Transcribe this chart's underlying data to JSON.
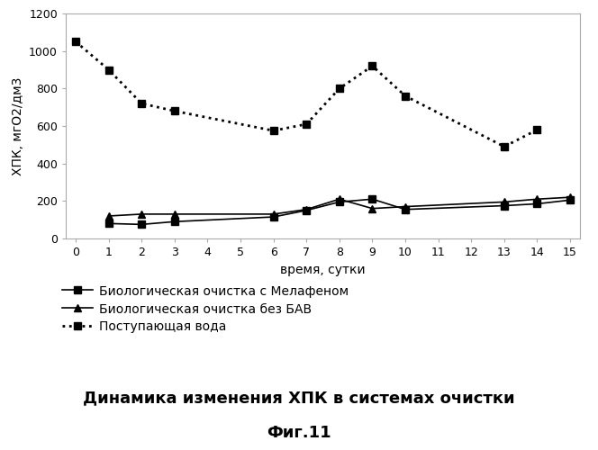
{
  "bio_melafon_x": [
    1,
    2,
    3,
    6,
    7,
    8,
    9,
    10,
    13,
    14,
    15
  ],
  "bio_melafon_y": [
    80,
    75,
    90,
    115,
    150,
    195,
    210,
    155,
    175,
    185,
    205
  ],
  "bio_no_bav_x": [
    1,
    2,
    3,
    6,
    7,
    8,
    9,
    10,
    13,
    14,
    15
  ],
  "bio_no_bav_y": [
    120,
    130,
    130,
    130,
    155,
    210,
    160,
    170,
    195,
    210,
    220
  ],
  "incoming_x": [
    0,
    1,
    2,
    3,
    6,
    7,
    8,
    9,
    10,
    13,
    14
  ],
  "incoming_y": [
    1050,
    900,
    720,
    680,
    575,
    610,
    800,
    920,
    760,
    490,
    580
  ],
  "xlabel": "время, сутки",
  "ylabel": "ХПК, мгО2/дм3",
  "title": "Динамика изменения ХПК в системах очистки",
  "fig_label": "Фиг.11",
  "legend_bio_melafon": "Биологическая очистка с Мелафеном",
  "legend_bio_no_bav": "Биологическая очистка без БАВ",
  "legend_incoming": "Поступающая вода",
  "xlim": [
    -0.3,
    15.3
  ],
  "ylim": [
    0,
    1200
  ],
  "yticks": [
    0,
    200,
    400,
    600,
    800,
    1000,
    1200
  ],
  "xticks": [
    0,
    1,
    2,
    3,
    4,
    5,
    6,
    7,
    8,
    9,
    10,
    11,
    12,
    13,
    14,
    15
  ],
  "line_color": "#000000",
  "bg_color": "#ffffff",
  "marker_square": "s",
  "marker_triangle": "^",
  "fontsize_title": 13,
  "fontsize_label": 10,
  "fontsize_tick": 9,
  "fontsize_legend": 10,
  "fontsize_figlabel": 13
}
